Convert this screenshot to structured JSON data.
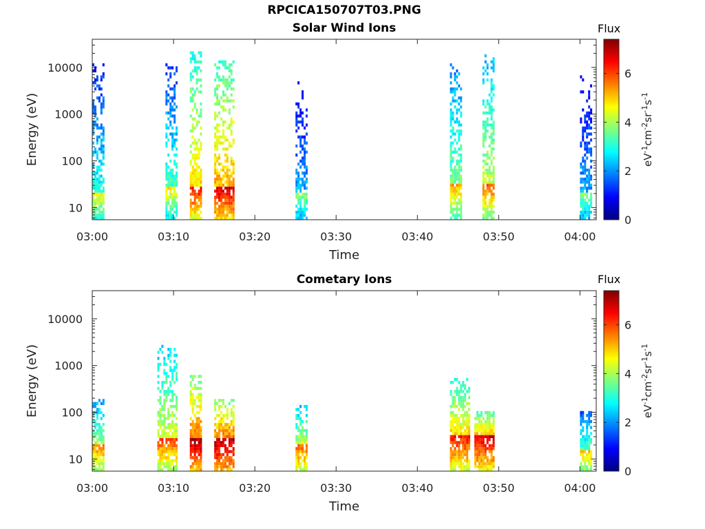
{
  "figure": {
    "title": "RPCICA150707T03.PNG",
    "flux_label": "Flux",
    "colorbar_unit_parts": [
      "eV",
      "-1",
      "cm",
      "-2",
      "sr",
      "-1",
      "s",
      "-1"
    ],
    "colorbar_ticks": [
      "0",
      "2",
      "4",
      "6"
    ],
    "colormap": [
      "#00007f",
      "#0000ff",
      "#007fff",
      "#00ffff",
      "#7fff7f",
      "#ffff00",
      "#ff7f00",
      "#ff0000",
      "#7f0000"
    ]
  },
  "chart_data": [
    {
      "type": "heatmap",
      "title": "Solar Wind Ions",
      "xlabel": "Time",
      "ylabel": "Energy (eV)",
      "yscale": "log",
      "xlim": [
        "03:00",
        "04:02"
      ],
      "ylim": [
        5.5,
        40000
      ],
      "x_tick_labels": [
        "03:00",
        "03:10",
        "03:20",
        "03:30",
        "03:40",
        "03:50",
        "04:00"
      ],
      "y_tick_labels": [
        "10",
        "100",
        "1000",
        "10000"
      ],
      "clim": [
        0,
        7.4
      ],
      "bursts": [
        {
          "start": "03:00",
          "end": "03:01",
          "peak_energy_eV": 20,
          "peak_flux": 4.6,
          "max_energy_eV": 14000
        },
        {
          "start": "03:09",
          "end": "03:10",
          "peak_energy_eV": 28,
          "peak_flux": 4.8,
          "max_energy_eV": 15000
        },
        {
          "start": "03:12",
          "end": "03:13",
          "peak_energy_eV": 28,
          "peak_flux": 6.5,
          "max_energy_eV": 22000
        },
        {
          "start": "03:15",
          "end": "03:17",
          "peak_energy_eV": 28,
          "peak_flux": 6.8,
          "max_energy_eV": 15000
        },
        {
          "start": "03:25",
          "end": "03:26",
          "peak_energy_eV": 20,
          "peak_flux": 3.8,
          "max_energy_eV": 13000
        },
        {
          "start": "03:44",
          "end": "03:45",
          "peak_energy_eV": 32,
          "peak_flux": 5.3,
          "max_energy_eV": 14000
        },
        {
          "start": "03:48",
          "end": "03:49",
          "peak_energy_eV": 32,
          "peak_flux": 5.8,
          "max_energy_eV": 20000
        },
        {
          "start": "04:00",
          "end": "04:01",
          "peak_energy_eV": 20,
          "peak_flux": 3.8,
          "max_energy_eV": 25000
        }
      ]
    },
    {
      "type": "heatmap",
      "title": "Cometary Ions",
      "xlabel": "Time",
      "ylabel": "Energy (eV)",
      "yscale": "log",
      "xlim": [
        "03:00",
        "04:02"
      ],
      "ylim": [
        5.5,
        40000
      ],
      "x_tick_labels": [
        "03:00",
        "03:10",
        "03:20",
        "03:30",
        "03:40",
        "03:50",
        "04:00"
      ],
      "y_tick_labels": [
        "10",
        "100",
        "1000",
        "10000"
      ],
      "clim": [
        0,
        7.4
      ],
      "bursts": [
        {
          "start": "03:00",
          "end": "03:01",
          "peak_energy_eV": 20,
          "peak_flux": 5.5,
          "max_energy_eV": 200
        },
        {
          "start": "03:08",
          "end": "03:10",
          "peak_energy_eV": 28,
          "peak_flux": 6.0,
          "max_energy_eV": 2700
        },
        {
          "start": "03:12",
          "end": "03:13",
          "peak_energy_eV": 28,
          "peak_flux": 7.2,
          "max_energy_eV": 650
        },
        {
          "start": "03:15",
          "end": "03:17",
          "peak_energy_eV": 28,
          "peak_flux": 7.2,
          "max_energy_eV": 200
        },
        {
          "start": "03:25",
          "end": "03:26",
          "peak_energy_eV": 20,
          "peak_flux": 5.8,
          "max_energy_eV": 150
        },
        {
          "start": "03:44",
          "end": "03:46",
          "peak_energy_eV": 32,
          "peak_flux": 6.5,
          "max_energy_eV": 550
        },
        {
          "start": "03:47",
          "end": "03:49",
          "peak_energy_eV": 32,
          "peak_flux": 6.8,
          "max_energy_eV": 110
        },
        {
          "start": "04:00",
          "end": "04:01",
          "peak_energy_eV": 15,
          "peak_flux": 5.0,
          "max_energy_eV": 120
        }
      ]
    }
  ]
}
